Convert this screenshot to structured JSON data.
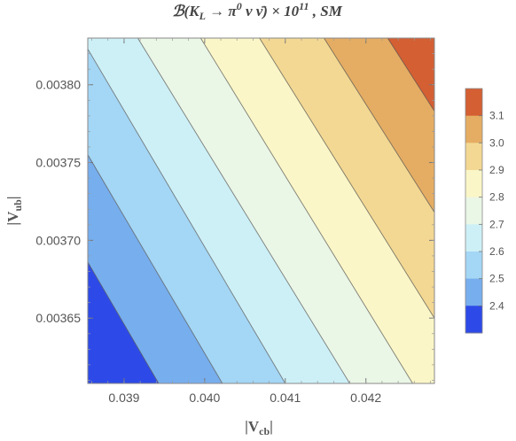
{
  "chart_data": {
    "type": "contour",
    "title": "ℬ(K_L → π⁰ ν ν̄) × 10¹¹ , SM",
    "title_parts": {
      "prefix": "ℬ(K",
      "sub_L": "L",
      "arrow": " → π",
      "sup_0": "0",
      "rest": " ν ν̄) × 10",
      "sup_11": "11",
      "suffix": " , SM"
    },
    "xlabel": "|V_cb|",
    "xlabel_parts": {
      "main": "|V",
      "sub": "cb",
      "end": "|"
    },
    "ylabel": "|V_ub|",
    "ylabel_parts": {
      "main": "|V",
      "sub": "ub",
      "end": "|"
    },
    "xlim": [
      0.03855,
      0.04285
    ],
    "ylim": [
      0.003608,
      0.00383
    ],
    "x_ticks": [
      {
        "value": 0.039,
        "label": "0.039"
      },
      {
        "value": 0.04,
        "label": "0.040"
      },
      {
        "value": 0.041,
        "label": "0.041"
      },
      {
        "value": 0.042,
        "label": "0.042"
      }
    ],
    "y_ticks": [
      {
        "value": 0.00365,
        "label": "0.00365"
      },
      {
        "value": 0.0037,
        "label": "0.00370"
      },
      {
        "value": 0.00375,
        "label": "0.00375"
      },
      {
        "value": 0.0038,
        "label": "0.00380"
      }
    ],
    "contour_levels": [
      2.4,
      2.5,
      2.6,
      2.7,
      2.8,
      2.9,
      3.0,
      3.1
    ],
    "colorbar": {
      "labels": [
        "3.1",
        "3.0",
        "2.9",
        "2.8",
        "2.7",
        "2.6",
        "2.5",
        "2.4"
      ],
      "colors": [
        "#d45f33",
        "#e5ad63",
        "#f3d893",
        "#faf6c7",
        "#eaf6e6",
        "#cdf0f7",
        "#a4d6f5",
        "#77aeee",
        "#2d4ae8"
      ]
    },
    "band_colors": [
      "#2d4ae8",
      "#77aeee",
      "#a4d6f5",
      "#cdf0f7",
      "#eaf6e6",
      "#faf6c7",
      "#f3d893",
      "#e5ad63",
      "#d45f33"
    ],
    "contour_lines": [
      {
        "level": 2.4,
        "points": [
          [
            0.03855,
            0.003686
          ],
          [
            0.03943,
            0.003608
          ]
        ]
      },
      {
        "level": 2.5,
        "points": [
          [
            0.03855,
            0.003755
          ],
          [
            0.04022,
            0.003608
          ]
        ]
      },
      {
        "level": 2.6,
        "points": [
          [
            0.03855,
            0.003823
          ],
          [
            0.041,
            0.003608
          ]
        ]
      },
      {
        "level": 2.7,
        "points": [
          [
            0.03917,
            0.00383
          ],
          [
            0.0418,
            0.003608
          ]
        ]
      },
      {
        "level": 2.8,
        "points": [
          [
            0.03995,
            0.00383
          ],
          [
            0.04258,
            0.003608
          ]
        ]
      },
      {
        "level": 2.9,
        "points": [
          [
            0.04068,
            0.00383
          ],
          [
            0.04285,
            0.00365
          ]
        ]
      },
      {
        "level": 3.0,
        "points": [
          [
            0.04148,
            0.00383
          ],
          [
            0.04285,
            0.003718
          ]
        ]
      },
      {
        "level": 3.1,
        "points": [
          [
            0.04227,
            0.00383
          ],
          [
            0.04285,
            0.003783
          ]
        ]
      }
    ]
  }
}
